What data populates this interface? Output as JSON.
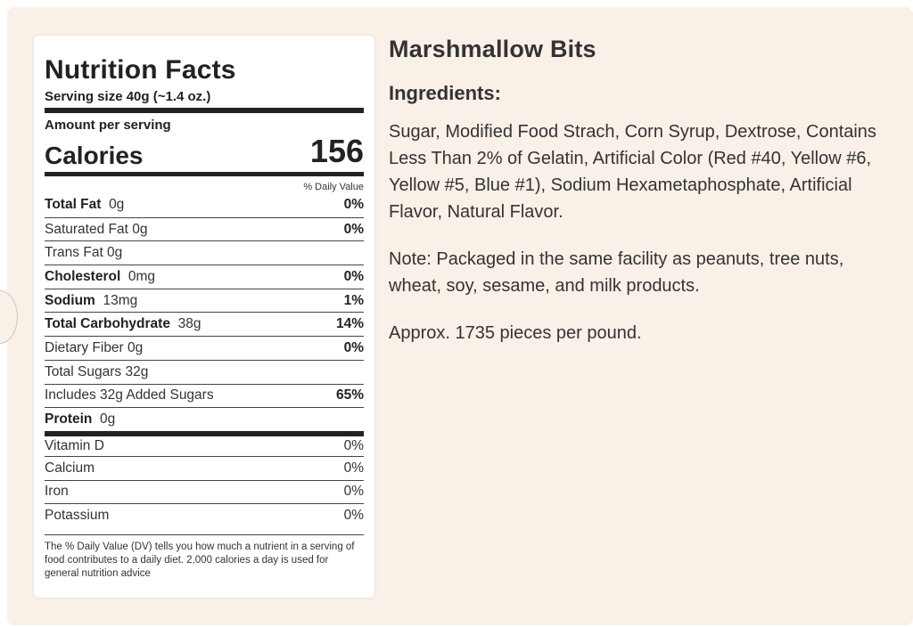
{
  "label": {
    "title": "Nutrition Facts",
    "serving_size": "Serving size 40g (~1.4 oz.)",
    "amount_per_serving": "Amount per serving",
    "calories_label": "Calories",
    "calories_value": "156",
    "dv_header": "% Daily Value",
    "rows": [
      {
        "name": "Total Fat",
        "amount": "0g",
        "pct": "0%",
        "bold": true
      },
      {
        "name": "Saturated Fat 0g",
        "amount": "",
        "pct": "0%",
        "bold": false
      },
      {
        "name": "Trans Fat 0g",
        "amount": "",
        "pct": "",
        "bold": false
      },
      {
        "name": "Cholesterol",
        "amount": "0mg",
        "pct": "0%",
        "bold": true
      },
      {
        "name": "Sodium",
        "amount": "13mg",
        "pct": "1%",
        "bold": true
      },
      {
        "name": "Total Carbohydrate",
        "amount": "38g",
        "pct": "14%",
        "bold": true
      },
      {
        "name": "Dietary Fiber 0g",
        "amount": "",
        "pct": "0%",
        "bold": false
      },
      {
        "name": "Total Sugars 32g",
        "amount": "",
        "pct": "",
        "bold": false
      },
      {
        "name": "Includes 32g Added Sugars",
        "amount": "",
        "pct": "65%",
        "bold": false
      },
      {
        "name": "Protein",
        "amount": "0g",
        "pct": "",
        "bold": true
      }
    ],
    "vitamins": [
      {
        "name": "Vitamin D",
        "pct": "0%"
      },
      {
        "name": "Calcium",
        "pct": "0%"
      },
      {
        "name": "Iron",
        "pct": "0%"
      },
      {
        "name": "Potassium",
        "pct": "0%"
      }
    ],
    "footnote": "The % Daily Value (DV) tells you how much a nutrient in a serving of food contributes to a daily diet. 2,000 calories a day is used for general nutrition advice"
  },
  "product": {
    "title": "Marshmallow Bits",
    "ingredients_heading": "Ingredients:",
    "ingredients_text": "Sugar, Modified Food Strach, Corn Syrup, Dextrose, Contains Less Than 2% of Gelatin, Artificial Color (Red #40, Yellow #6, Yellow #5, Blue #1), Sodium Hexametaphosphate, Artificial Flavor, Natural Flavor.",
    "note": "Note: Packaged in the same facility as peanuts, tree nuts, wheat, soy, sesame, and milk products.",
    "pieces": "Approx. 1735 pieces per pound."
  },
  "colors": {
    "panel_bg": "#f9f0e8",
    "text": "#333333",
    "rule": "#222222"
  }
}
